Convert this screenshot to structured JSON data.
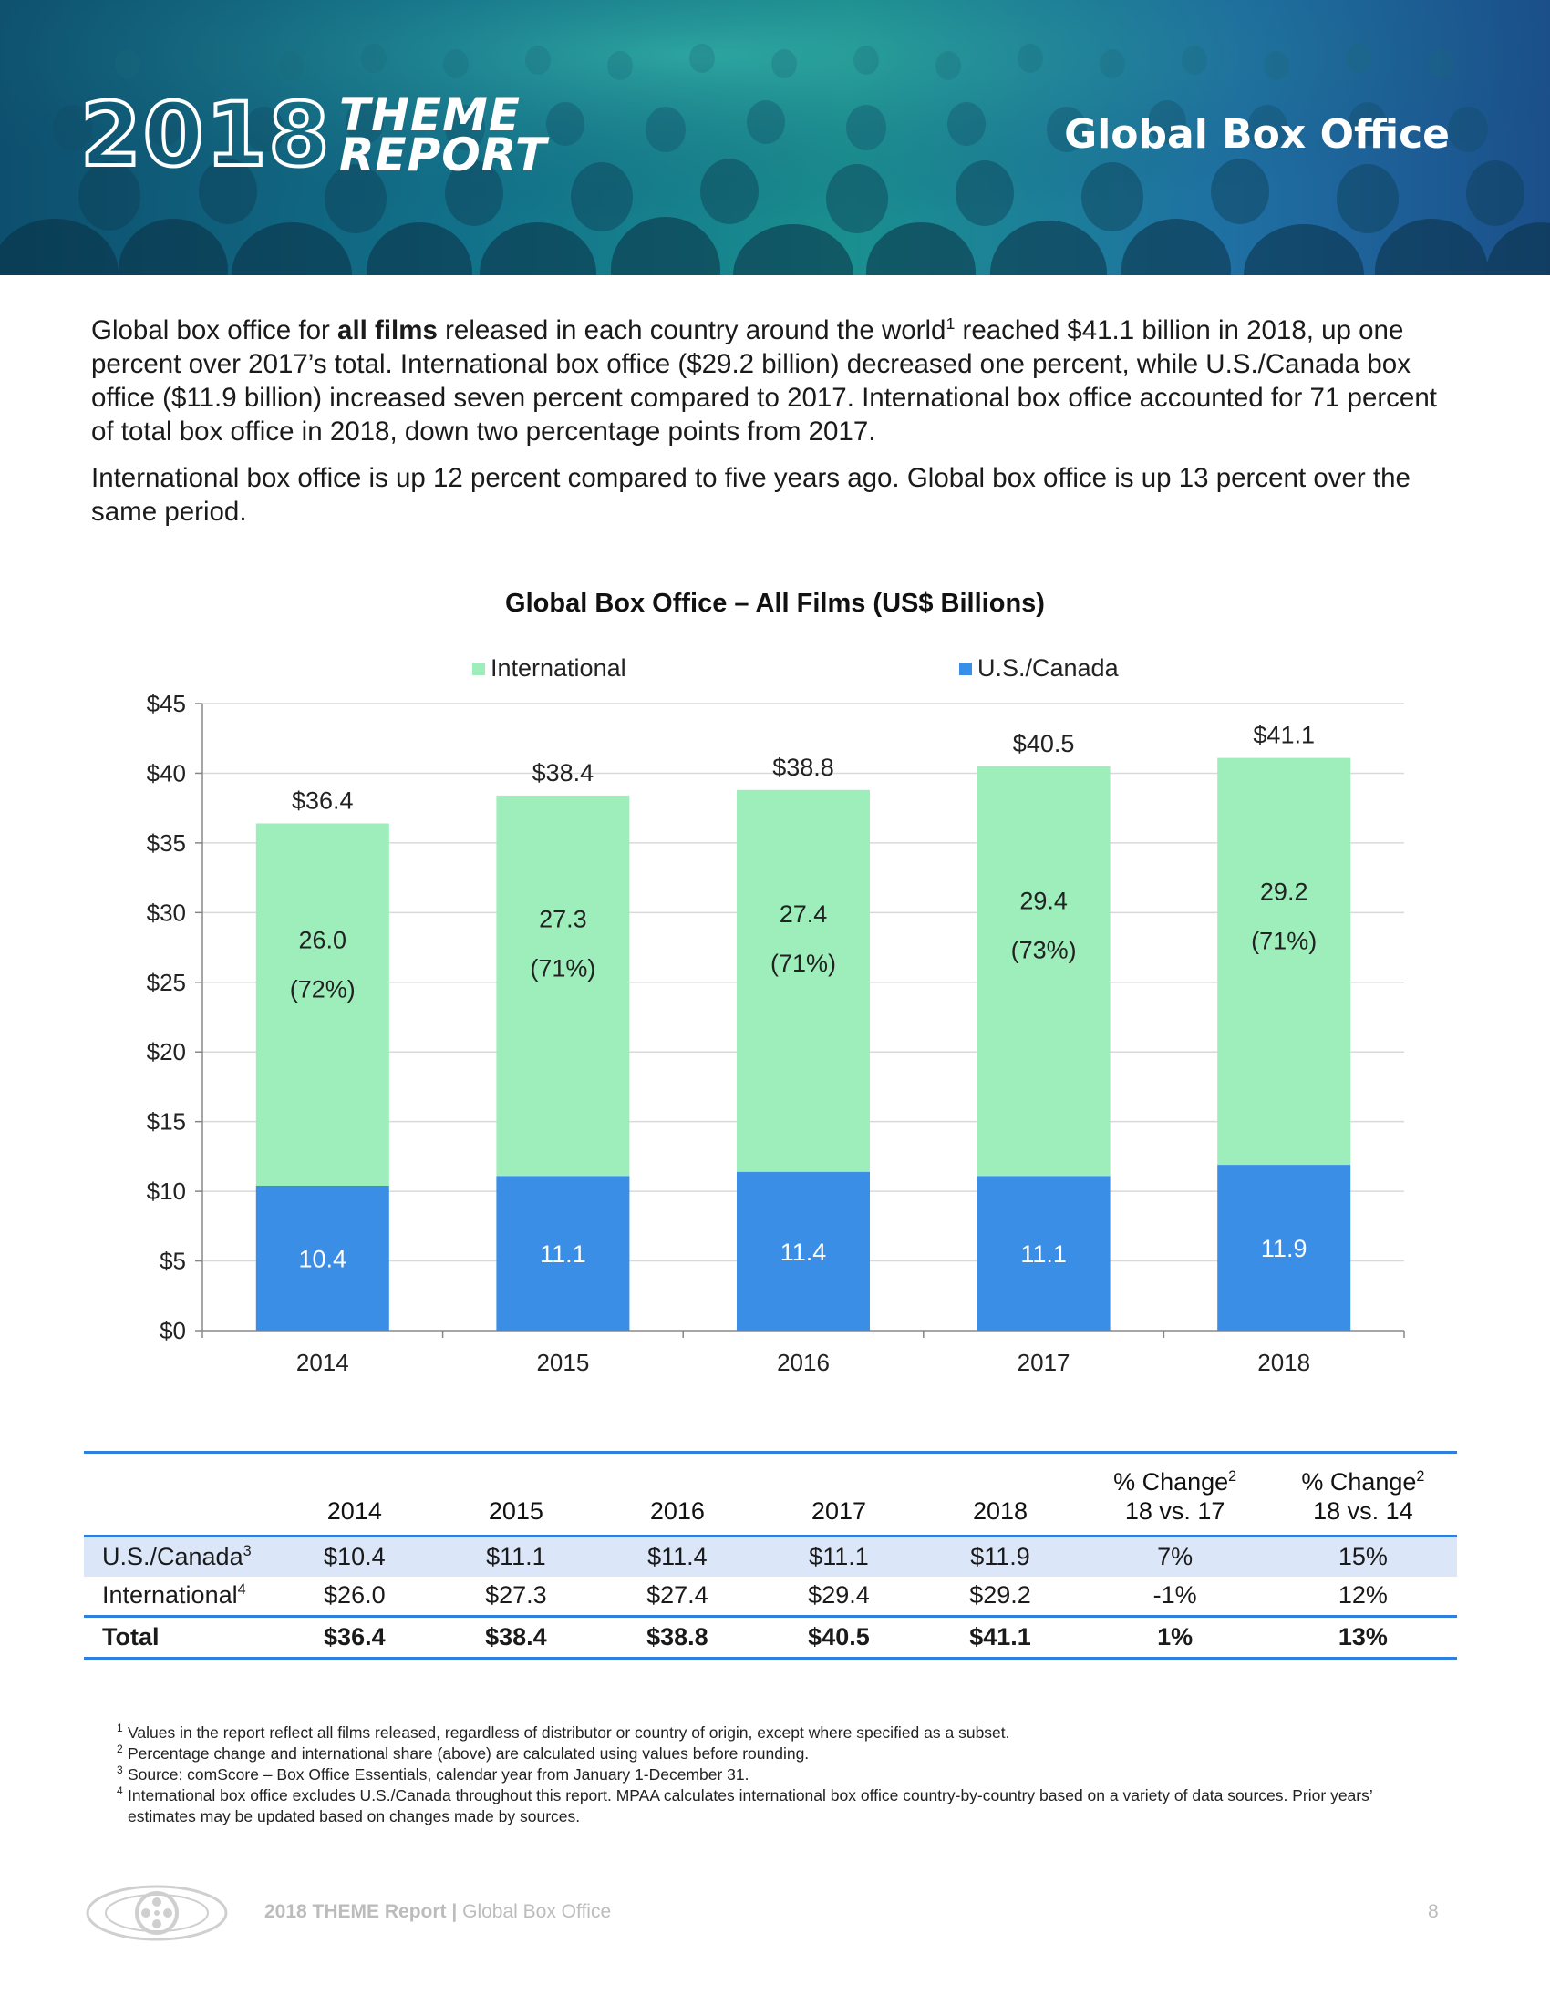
{
  "header": {
    "year": "2018",
    "brand_line1": "THEME",
    "brand_line2": "REPORT",
    "section_title": "Global Box Office"
  },
  "intro": {
    "p1_a": "Global box office for ",
    "p1_bold": "all films",
    "p1_b": " released in each country around the world",
    "p1_sup": "1",
    "p1_c": " reached $41.1 billion in 2018, up one percent over 2017’s total. International box office ($29.2 billion) decreased one percent, while U.S./Canada box office ($11.9 billion) increased seven percent compared to 2017. International box office accounted for 71 percent of total box office in 2018, down two percentage points from 2017.",
    "p2": "International box office is up 12 percent compared to five years ago. Global box office is up 13 percent over the same period."
  },
  "chart_data": {
    "type": "bar",
    "stacked": true,
    "title": "Global Box Office – All Films (US$ Billions)",
    "categories": [
      "2014",
      "2015",
      "2016",
      "2017",
      "2018"
    ],
    "series": [
      {
        "name": "U.S./Canada",
        "values": [
          10.4,
          11.1,
          11.4,
          11.1,
          11.9
        ],
        "labels": [
          "10.4",
          "11.1",
          "11.4",
          "11.1",
          "11.9"
        ],
        "color": "#3a8ee6"
      },
      {
        "name": "International",
        "values": [
          26.0,
          27.3,
          27.4,
          29.4,
          29.2
        ],
        "labels": [
          "26.0",
          "27.3",
          "27.4",
          "29.4",
          "29.2"
        ],
        "share_labels": [
          "(72%)",
          "(71%)",
          "(71%)",
          "(73%)",
          "(71%)"
        ],
        "color": "#9deebb"
      }
    ],
    "totals": [
      36.4,
      38.4,
      38.8,
      40.5,
      41.1
    ],
    "total_labels": [
      "$36.4",
      "$38.4",
      "$38.8",
      "$40.5",
      "$41.1"
    ],
    "legend": [
      {
        "name": "International",
        "color": "#9deebb"
      },
      {
        "name": "U.S./Canada",
        "color": "#3a8ee6"
      }
    ],
    "ylim": [
      0,
      45
    ],
    "yticks": [
      0,
      5,
      10,
      15,
      20,
      25,
      30,
      35,
      40,
      45
    ],
    "ytick_labels": [
      "$0",
      "$5",
      "$10",
      "$15",
      "$20",
      "$25",
      "$30",
      "$35",
      "$40",
      "$45"
    ],
    "xlabel": "",
    "ylabel": "",
    "grid": true,
    "gridline_color": "#d9d9d9",
    "legend_position": "top"
  },
  "table": {
    "headers": [
      "",
      "2014",
      "2015",
      "2016",
      "2017",
      "2018"
    ],
    "change_header_1": {
      "main": "% Change",
      "sup": "2",
      "sub": "18 vs. 17"
    },
    "change_header_2": {
      "main": "% Change",
      "sup": "2",
      "sub": "18 vs. 14"
    },
    "rows": [
      {
        "label": "U.S./Canada",
        "sup": "3",
        "cells": [
          "$10.4",
          "$11.1",
          "$11.4",
          "$11.1",
          "$11.9",
          "7%",
          "15%"
        ]
      },
      {
        "label": "International",
        "sup": "4",
        "cells": [
          "$26.0",
          "$27.3",
          "$27.4",
          "$29.4",
          "$29.2",
          "-1%",
          "12%"
        ]
      },
      {
        "label": "Total",
        "sup": "",
        "cells": [
          "$36.4",
          "$38.4",
          "$38.8",
          "$40.5",
          "$41.1",
          "1%",
          "13%"
        ]
      }
    ],
    "accent_color": "#2f7fe0",
    "highlight_color": "#dbe7f8"
  },
  "footnotes": [
    {
      "num": "1",
      "text": "Values in the report reflect all films released, regardless of distributor or country of origin, except where specified as a subset."
    },
    {
      "num": "2",
      "text": "Percentage change and international share (above) are calculated using values before rounding."
    },
    {
      "num": "3",
      "text": "Source:  comScore – Box Office Essentials, calendar year from January 1-December 31."
    },
    {
      "num": "4",
      "text": "International box office excludes U.S./Canada throughout this report. MPAA calculates international box office country-by-country based on a variety of data sources. Prior years’ estimates may be updated based on changes made by sources."
    }
  ],
  "footer": {
    "report_name": "2018 THEME Report",
    "separator": " | ",
    "section": "Global Box Office",
    "page_number": "8",
    "logo_icon": "film-reel-logo-icon"
  }
}
